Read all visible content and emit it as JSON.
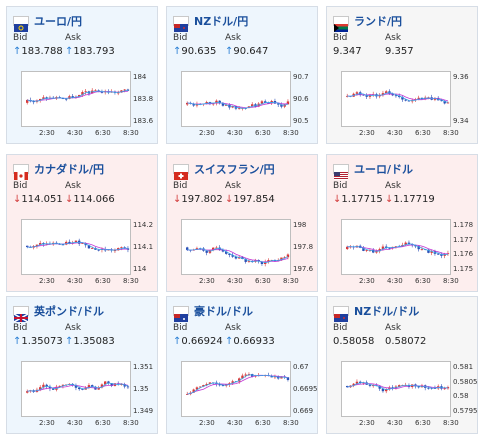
{
  "colors": {
    "up_bg": "#eef6fd",
    "down_bg": "#fdeeee",
    "flat_bg": "#f6f6f6",
    "up_candle": "#d83a3a",
    "down_candle": "#2c4fb5",
    "ma_line": "#c23ad6",
    "ma_line2": "#3aa3e8"
  },
  "headers": {
    "bid": "Bid",
    "ask": "Ask"
  },
  "x_ticks": [
    "2:30",
    "4:30",
    "6:30",
    "8:30"
  ],
  "cards": [
    {
      "pair": "ユーロ/円",
      "flag": "eu-flag-icon",
      "trend": "up",
      "bid": "183.788",
      "ask": "183.793",
      "bid_arrow": "↑",
      "ask_arrow": "↑",
      "y_ticks": [
        "184",
        "183.8",
        "183.6"
      ]
    },
    {
      "pair": "NZドル/円",
      "flag": "nz-flag-icon",
      "trend": "up",
      "bid": "90.635",
      "ask": "90.647",
      "bid_arrow": "↑",
      "ask_arrow": "↑",
      "y_ticks": [
        "90.7",
        "90.6",
        "90.5"
      ]
    },
    {
      "pair": "ランド/円",
      "flag": "za-flag-icon",
      "trend": "flat",
      "bid": "9.347",
      "ask": "9.357",
      "bid_arrow": "",
      "ask_arrow": "",
      "y_ticks": [
        "9.36",
        "9.34"
      ]
    },
    {
      "pair": "カナダドル/円",
      "flag": "ca-flag-icon",
      "trend": "down",
      "bid": "114.051",
      "ask": "114.066",
      "bid_arrow": "↓",
      "ask_arrow": "↓",
      "y_ticks": [
        "114.2",
        "114.1",
        "114"
      ]
    },
    {
      "pair": "スイスフラン/円",
      "flag": "ch-flag-icon",
      "trend": "down",
      "bid": "197.802",
      "ask": "197.854",
      "bid_arrow": "↓",
      "ask_arrow": "↓",
      "y_ticks": [
        "198",
        "197.8",
        "197.6"
      ]
    },
    {
      "pair": "ユーロ/ドル",
      "flag": "us-flag-icon",
      "trend": "down",
      "bid": "1.17715",
      "ask": "1.17719",
      "bid_arrow": "↓",
      "ask_arrow": "↓",
      "y_ticks": [
        "1.178",
        "1.177",
        "1.176",
        "1.175"
      ]
    },
    {
      "pair": "英ポンド/ドル",
      "flag": "gb-flag-icon",
      "trend": "up",
      "bid": "1.35073",
      "ask": "1.35083",
      "bid_arrow": "↑",
      "ask_arrow": "↑",
      "y_ticks": [
        "1.351",
        "1.35",
        "1.349"
      ]
    },
    {
      "pair": "豪ドル/ドル",
      "flag": "au-flag-icon",
      "trend": "up",
      "bid": "0.66924",
      "ask": "0.66933",
      "bid_arrow": "↑",
      "ask_arrow": "↑",
      "y_ticks": [
        "0.67",
        "0.6695",
        "0.669"
      ]
    },
    {
      "pair": "NZドル/ドル",
      "flag": "nz-flag-icon",
      "trend": "flat",
      "bid": "0.58058",
      "ask": "0.58072",
      "bid_arrow": "",
      "ask_arrow": "",
      "y_ticks": [
        "0.581",
        "0.5805",
        "0.58",
        "0.5795"
      ]
    }
  ]
}
